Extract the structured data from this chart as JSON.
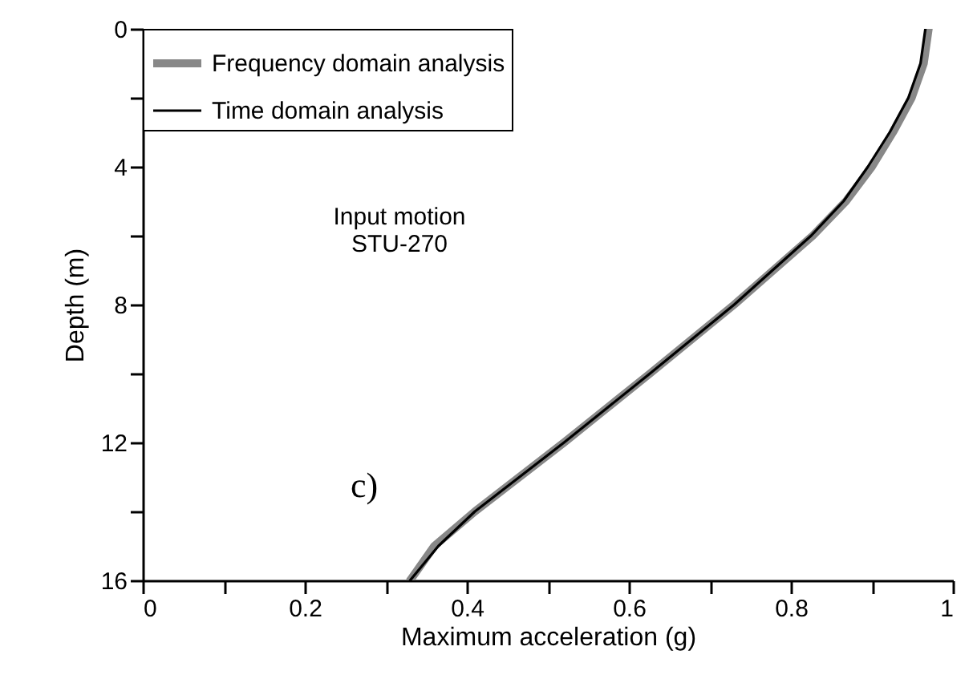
{
  "chart_data": {
    "type": "line",
    "xlabel": "Maximum acceleration (g)",
    "ylabel": "Depth (m)",
    "series": [
      {
        "name": "Frequency domain analysis",
        "color": "#888888",
        "x": [
          0.97,
          0.964,
          0.949,
          0.926,
          0.9,
          0.868,
          0.827,
          0.73,
          0.626,
          0.52,
          0.41,
          0.36,
          0.33
        ],
        "values": [
          0,
          1,
          2,
          3,
          4,
          5,
          6,
          8,
          10,
          12,
          14,
          15,
          16
        ]
      },
      {
        "name": "Time domain analysis",
        "color": "#000000",
        "x": [
          0.966,
          0.96,
          0.945,
          0.922,
          0.895,
          0.865,
          0.825,
          0.73,
          0.626,
          0.52,
          0.41,
          0.365,
          0.33
        ],
        "values": [
          0,
          1,
          2,
          3,
          4,
          5,
          6,
          8,
          10,
          12,
          14,
          15,
          16
        ]
      }
    ],
    "xlim": [
      0,
      1
    ],
    "xticks": [
      0,
      {
        "value": 0.1,
        "label": null
      },
      0.2,
      {
        "value": 0.3,
        "label": null
      },
      0.4,
      {
        "value": 0.5,
        "label": null
      },
      0.6,
      {
        "value": 0.7,
        "label": null
      },
      0.8,
      {
        "value": 0.9,
        "label": null
      },
      1
    ],
    "ylim": [
      16,
      0
    ],
    "yticks": [
      0,
      {
        "value": 2,
        "label": null
      },
      4,
      {
        "value": 6,
        "label": null
      },
      8,
      {
        "value": 10,
        "label": null
      },
      12,
      {
        "value": 14,
        "label": null
      },
      16
    ],
    "annotations": [
      "Input motion\nSTU-270",
      "c)"
    ],
    "legend": "top left",
    "grid": false
  }
}
